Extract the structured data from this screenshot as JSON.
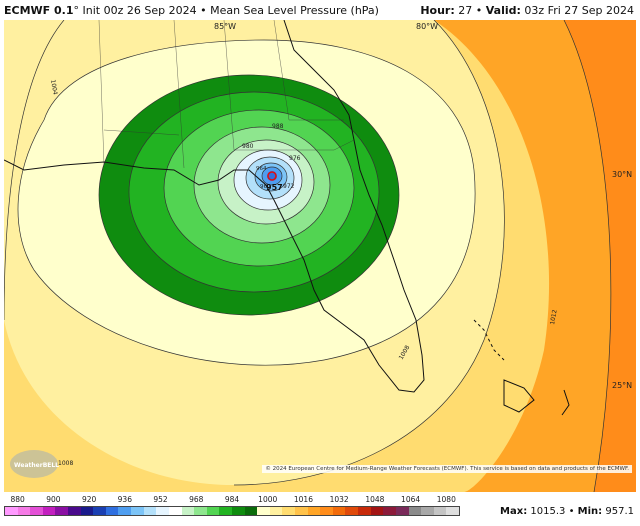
{
  "header": {
    "model": "ECMWF 0.1",
    "degree": "°",
    "run": "Init 00z 26 Sep 2024",
    "separator": "•",
    "field": "Mean Sea Level Pressure (hPa)",
    "hour_label": "Hour:",
    "hour": "27",
    "valid_label": "Valid:",
    "valid": "03z Fri 27 Sep 2024"
  },
  "map": {
    "lon_labels": [
      "85°W",
      "80°W"
    ],
    "lat_labels": [
      "30°N",
      "25°N"
    ],
    "contour_labels": [
      "1004",
      "1008",
      "1008",
      "1012",
      "988",
      "980",
      "976",
      "972",
      "964",
      "960",
      "957"
    ],
    "center_value": "957",
    "watermark": "WeatherBELL",
    "credit": "© 2024 European Centre for Medium-Range Weather Forecasts (ECMWF). This service is based on data and products of the ECMWF."
  },
  "legend": {
    "ticks": [
      "880",
      "900",
      "920",
      "936",
      "952",
      "968",
      "984",
      "1000",
      "1016",
      "1032",
      "1048",
      "1064",
      "1080"
    ],
    "colors": [
      "#ff99ff",
      "#f57ae6",
      "#e34fd6",
      "#c21fbf",
      "#8a0fa3",
      "#4a0a8c",
      "#1a1a8c",
      "#1a3fb3",
      "#2f6fe0",
      "#4f9ef0",
      "#7cc4f7",
      "#b3e0fa",
      "#e6f5ff",
      "#ffffff",
      "#c7f2c7",
      "#8ee68e",
      "#52d452",
      "#22b322",
      "#0f8c0f",
      "#0a6b0a",
      "#ffffcc",
      "#fff0a0",
      "#ffdc70",
      "#ffc24a",
      "#ffa526",
      "#ff8c1a",
      "#f26b0a",
      "#e04a0a",
      "#c72a0a",
      "#a31414",
      "#8c1a3a",
      "#7a2a5a",
      "#8a8a8a",
      "#a8a8a8",
      "#c4c4c4",
      "#dedede"
    ],
    "max_label": "Max:",
    "max": "1015.3",
    "min_label": "Min:",
    "min": "957.1"
  }
}
